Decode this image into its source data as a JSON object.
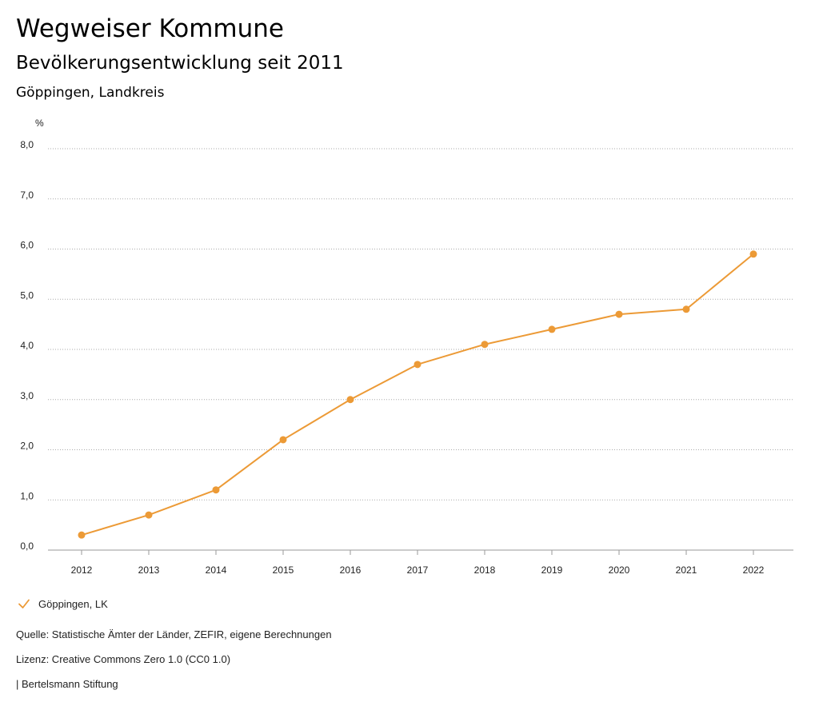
{
  "header": {
    "title": "Wegweiser Kommune",
    "subtitle": "Bevölkerungsentwicklung seit 2011",
    "region": "Göppingen, Landkreis"
  },
  "chart_data": {
    "type": "line",
    "unit_label": "%",
    "categories": [
      "2012",
      "2013",
      "2014",
      "2015",
      "2016",
      "2017",
      "2018",
      "2019",
      "2020",
      "2021",
      "2022"
    ],
    "series": [
      {
        "name": "Göppingen, LK",
        "color": "#ec9a36",
        "values": [
          0.3,
          0.7,
          1.2,
          2.2,
          3.0,
          3.7,
          4.1,
          4.4,
          4.7,
          4.8,
          5.9
        ]
      }
    ],
    "ylim": [
      0,
      8
    ],
    "yticks": [
      "0,0",
      "1,0",
      "2,0",
      "3,0",
      "4,0",
      "5,0",
      "6,0",
      "7,0",
      "8,0"
    ],
    "grid": true,
    "legend_position": "bottom-left"
  },
  "legend": {
    "label": "Göppingen, LK",
    "icon": "check-icon"
  },
  "footer": {
    "source": "Quelle: Statistische Ämter der Länder, ZEFIR, eigene Berechnungen",
    "license": "Lizenz: Creative Commons Zero 1.0 (CC0 1.0)",
    "publisher": "| Bertelsmann Stiftung"
  }
}
